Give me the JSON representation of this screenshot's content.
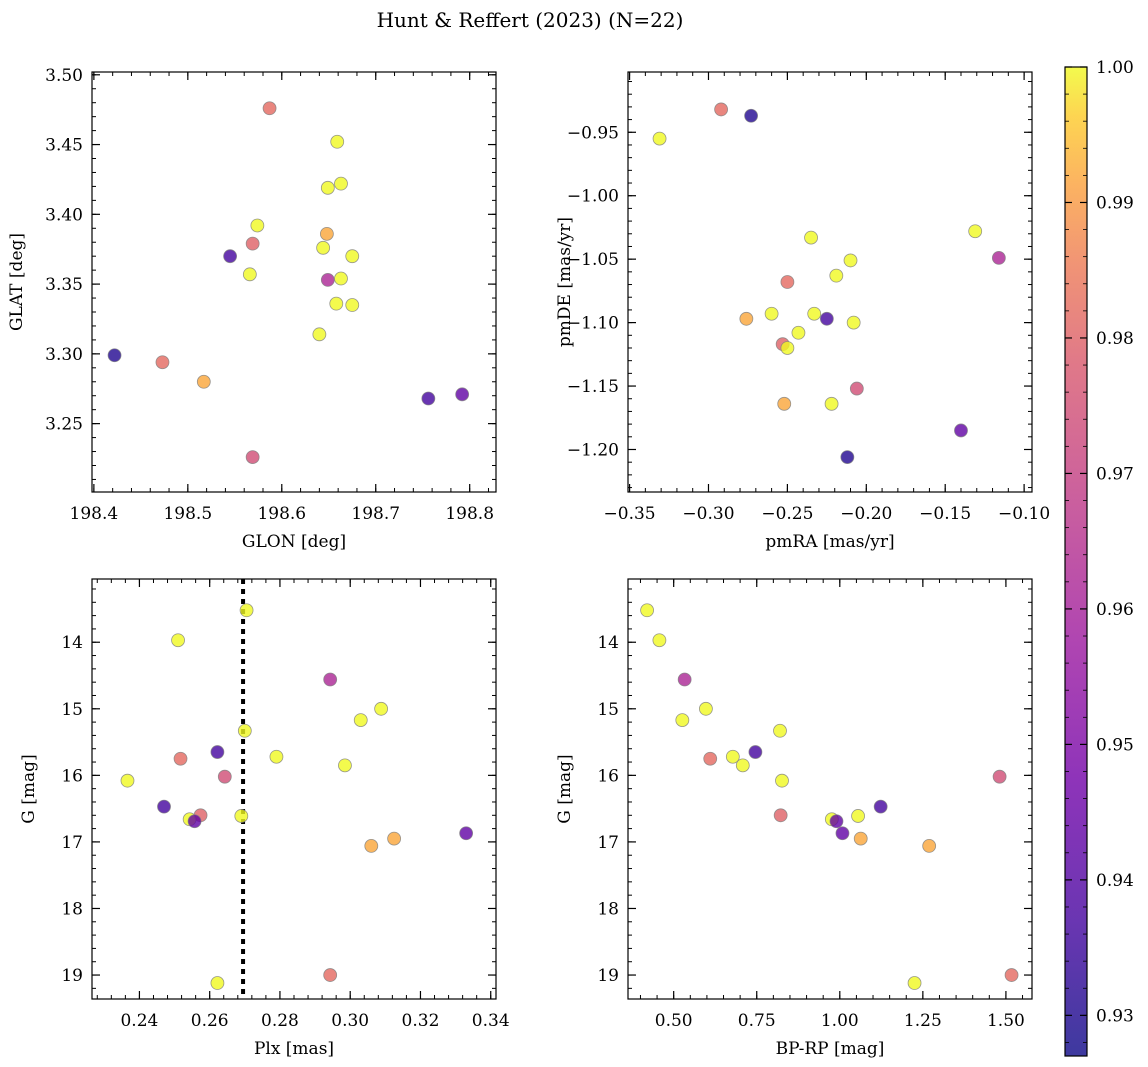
{
  "title": "Hunt & Reffert (2023) (N=22)",
  "colorbar": {
    "label": "",
    "vmin": 0.927,
    "vmax": 1.0,
    "ticks": [
      "0.93",
      "0.94",
      "0.95",
      "0.96",
      "0.97",
      "0.98",
      "0.99",
      "1.00"
    ],
    "tick_values": [
      0.93,
      0.94,
      0.95,
      0.96,
      0.97,
      0.98,
      0.99,
      1.0
    ],
    "colormap": "plasma",
    "alpha": 0.8
  },
  "colors": {
    "marker_edge": "#808080",
    "vline": "#000000"
  },
  "chart_data": [
    {
      "type": "scatter",
      "id": "glon-glat",
      "xlabel": "GLON [deg]",
      "ylabel": "GLAT [deg]",
      "xlim": [
        198.398,
        198.828
      ],
      "ylim": [
        3.201,
        3.502
      ],
      "y_inverted": false,
      "xticks": [
        "198.4",
        "198.5",
        "198.6",
        "198.7",
        "198.8"
      ],
      "xtick_values": [
        198.4,
        198.5,
        198.6,
        198.7,
        198.8
      ],
      "yticks": [
        "3.25",
        "3.30",
        "3.35",
        "3.40",
        "3.45",
        "3.50"
      ],
      "ytick_values": [
        3.25,
        3.3,
        3.35,
        3.4,
        3.45,
        3.5
      ],
      "points": [
        {
          "x": 198.587,
          "y": 3.476,
          "c": 0.972
        },
        {
          "x": 198.659,
          "y": 3.452,
          "c": 1.0
        },
        {
          "x": 198.663,
          "y": 3.422,
          "c": 1.0
        },
        {
          "x": 198.649,
          "y": 3.419,
          "c": 1.0
        },
        {
          "x": 198.574,
          "y": 3.392,
          "c": 1.0
        },
        {
          "x": 198.648,
          "y": 3.386,
          "c": 0.985
        },
        {
          "x": 198.569,
          "y": 3.379,
          "c": 0.97
        },
        {
          "x": 198.644,
          "y": 3.376,
          "c": 1.0
        },
        {
          "x": 198.545,
          "y": 3.37,
          "c": 0.935
        },
        {
          "x": 198.675,
          "y": 3.37,
          "c": 1.0
        },
        {
          "x": 198.566,
          "y": 3.357,
          "c": 1.0
        },
        {
          "x": 198.649,
          "y": 3.353,
          "c": 0.955
        },
        {
          "x": 198.663,
          "y": 3.354,
          "c": 1.0
        },
        {
          "x": 198.658,
          "y": 3.336,
          "c": 1.0
        },
        {
          "x": 198.675,
          "y": 3.335,
          "c": 1.0
        },
        {
          "x": 198.64,
          "y": 3.314,
          "c": 1.0
        },
        {
          "x": 198.422,
          "y": 3.299,
          "c": 0.93
        },
        {
          "x": 198.473,
          "y": 3.294,
          "c": 0.972
        },
        {
          "x": 198.517,
          "y": 3.28,
          "c": 0.985
        },
        {
          "x": 198.792,
          "y": 3.271,
          "c": 0.94
        },
        {
          "x": 198.756,
          "y": 3.268,
          "c": 0.935
        },
        {
          "x": 198.569,
          "y": 3.226,
          "c": 0.965
        }
      ]
    },
    {
      "type": "scatter",
      "id": "pmra-pmde",
      "xlabel": "pmRA [mas/yr]",
      "ylabel": "pmDE [mas/yr]",
      "xlim": [
        -0.351,
        -0.095
      ],
      "ylim": [
        -1.2335,
        -0.9025
      ],
      "y_inverted": false,
      "xticks": [
        "−0.35",
        "−0.30",
        "−0.25",
        "−0.20",
        "−0.15",
        "−0.10"
      ],
      "xtick_values": [
        -0.35,
        -0.3,
        -0.25,
        -0.2,
        -0.15,
        -0.1
      ],
      "yticks": [
        "−0.95",
        "−1.00",
        "−1.05",
        "−1.10",
        "−1.15",
        "−1.20"
      ],
      "ytick_values": [
        -0.95,
        -1.0,
        -1.05,
        -1.1,
        -1.15,
        -1.2
      ],
      "points": [
        {
          "x": -0.292,
          "y": -0.932,
          "c": 0.972
        },
        {
          "x": -0.273,
          "y": -0.937,
          "c": 0.93
        },
        {
          "x": -0.331,
          "y": -0.955,
          "c": 1.0
        },
        {
          "x": -0.131,
          "y": -1.028,
          "c": 1.0
        },
        {
          "x": -0.235,
          "y": -1.033,
          "c": 1.0
        },
        {
          "x": -0.116,
          "y": -1.049,
          "c": 0.955
        },
        {
          "x": -0.21,
          "y": -1.051,
          "c": 1.0
        },
        {
          "x": -0.219,
          "y": -1.063,
          "c": 1.0
        },
        {
          "x": -0.25,
          "y": -1.068,
          "c": 0.972
        },
        {
          "x": -0.233,
          "y": -1.093,
          "c": 1.0
        },
        {
          "x": -0.26,
          "y": -1.093,
          "c": 1.0
        },
        {
          "x": -0.276,
          "y": -1.097,
          "c": 0.985
        },
        {
          "x": -0.225,
          "y": -1.097,
          "c": 0.935
        },
        {
          "x": -0.208,
          "y": -1.1,
          "c": 1.0
        },
        {
          "x": -0.243,
          "y": -1.108,
          "c": 1.0
        },
        {
          "x": -0.253,
          "y": -1.117,
          "c": 0.97
        },
        {
          "x": -0.25,
          "y": -1.12,
          "c": 1.0
        },
        {
          "x": -0.206,
          "y": -1.152,
          "c": 0.965
        },
        {
          "x": -0.252,
          "y": -1.164,
          "c": 0.985
        },
        {
          "x": -0.222,
          "y": -1.164,
          "c": 1.0
        },
        {
          "x": -0.14,
          "y": -1.185,
          "c": 0.94
        },
        {
          "x": -0.212,
          "y": -1.206,
          "c": 0.93
        }
      ]
    },
    {
      "type": "scatter",
      "id": "plx-g",
      "xlabel": "Plx [mas]",
      "ylabel": "G [mag]",
      "xlim": [
        0.2265,
        0.3415
      ],
      "ylim": [
        13.05,
        19.36
      ],
      "y_inverted": true,
      "xticks": [
        "0.24",
        "0.26",
        "0.28",
        "0.30",
        "0.32",
        "0.34"
      ],
      "xtick_values": [
        0.24,
        0.26,
        0.28,
        0.3,
        0.32,
        0.34
      ],
      "yticks": [
        "14",
        "15",
        "16",
        "17",
        "18",
        "19"
      ],
      "ytick_values": [
        14,
        15,
        16,
        17,
        18,
        19
      ],
      "vline": {
        "x": 0.2695,
        "style": "dotted"
      },
      "points": [
        {
          "x": 0.2705,
          "y": 13.52,
          "c": 1.0
        },
        {
          "x": 0.251,
          "y": 13.97,
          "c": 1.0
        },
        {
          "x": 0.2943,
          "y": 14.56,
          "c": 0.955
        },
        {
          "x": 0.3088,
          "y": 15.0,
          "c": 1.0
        },
        {
          "x": 0.303,
          "y": 15.17,
          "c": 1.0
        },
        {
          "x": 0.27,
          "y": 15.33,
          "c": 1.0
        },
        {
          "x": 0.2622,
          "y": 15.65,
          "c": 0.935
        },
        {
          "x": 0.2517,
          "y": 15.75,
          "c": 0.972
        },
        {
          "x": 0.279,
          "y": 15.72,
          "c": 1.0
        },
        {
          "x": 0.2985,
          "y": 15.85,
          "c": 1.0
        },
        {
          "x": 0.2643,
          "y": 16.02,
          "c": 0.965
        },
        {
          "x": 0.2366,
          "y": 16.08,
          "c": 1.0
        },
        {
          "x": 0.247,
          "y": 16.47,
          "c": 0.935
        },
        {
          "x": 0.2574,
          "y": 16.6,
          "c": 0.97
        },
        {
          "x": 0.269,
          "y": 16.61,
          "c": 1.0
        },
        {
          "x": 0.2543,
          "y": 16.66,
          "c": 1.0
        },
        {
          "x": 0.2557,
          "y": 16.69,
          "c": 0.94
        },
        {
          "x": 0.333,
          "y": 16.87,
          "c": 0.94
        },
        {
          "x": 0.3125,
          "y": 16.95,
          "c": 0.985
        },
        {
          "x": 0.306,
          "y": 17.06,
          "c": 0.985
        },
        {
          "x": 0.2943,
          "y": 19.0,
          "c": 0.972
        },
        {
          "x": 0.2622,
          "y": 19.12,
          "c": 1.0
        }
      ]
    },
    {
      "type": "scatter",
      "id": "bprp-g",
      "xlabel": "BP-RP [mag]",
      "ylabel": "G [mag]",
      "xlim": [
        0.3625,
        1.5785
      ],
      "ylim": [
        13.05,
        19.36
      ],
      "y_inverted": true,
      "xticks": [
        "0.50",
        "0.75",
        "1.00",
        "1.25",
        "1.50"
      ],
      "xtick_values": [
        0.5,
        0.75,
        1.0,
        1.25,
        1.5
      ],
      "yticks": [
        "14",
        "15",
        "16",
        "17",
        "18",
        "19"
      ],
      "ytick_values": [
        14,
        15,
        16,
        17,
        18,
        19
      ],
      "points": [
        {
          "x": 0.42,
          "y": 13.52,
          "c": 1.0
        },
        {
          "x": 0.457,
          "y": 13.97,
          "c": 1.0
        },
        {
          "x": 0.533,
          "y": 14.56,
          "c": 0.955
        },
        {
          "x": 0.597,
          "y": 15.0,
          "c": 1.0
        },
        {
          "x": 0.526,
          "y": 15.17,
          "c": 1.0
        },
        {
          "x": 0.82,
          "y": 15.33,
          "c": 1.0
        },
        {
          "x": 0.746,
          "y": 15.65,
          "c": 0.935
        },
        {
          "x": 0.61,
          "y": 15.75,
          "c": 0.972
        },
        {
          "x": 0.678,
          "y": 15.72,
          "c": 1.0
        },
        {
          "x": 0.708,
          "y": 15.85,
          "c": 1.0
        },
        {
          "x": 1.481,
          "y": 16.02,
          "c": 0.965
        },
        {
          "x": 0.826,
          "y": 16.08,
          "c": 1.0
        },
        {
          "x": 1.123,
          "y": 16.47,
          "c": 0.935
        },
        {
          "x": 0.822,
          "y": 16.6,
          "c": 0.97
        },
        {
          "x": 1.055,
          "y": 16.61,
          "c": 1.0
        },
        {
          "x": 0.976,
          "y": 16.66,
          "c": 1.0
        },
        {
          "x": 0.99,
          "y": 16.69,
          "c": 0.94
        },
        {
          "x": 1.008,
          "y": 16.87,
          "c": 0.94
        },
        {
          "x": 1.063,
          "y": 16.95,
          "c": 0.985
        },
        {
          "x": 1.269,
          "y": 17.06,
          "c": 0.985
        },
        {
          "x": 1.517,
          "y": 19.0,
          "c": 0.972
        },
        {
          "x": 1.225,
          "y": 19.12,
          "c": 1.0
        }
      ]
    }
  ]
}
